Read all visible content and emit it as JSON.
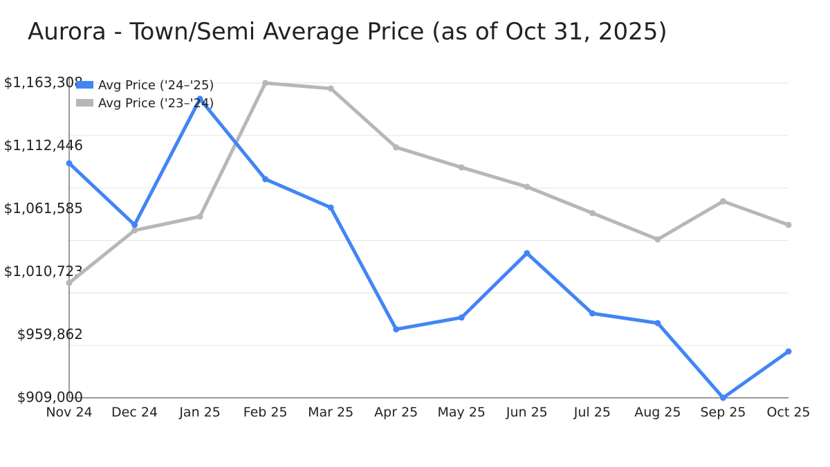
{
  "chart_data": {
    "type": "line",
    "title": "Aurora - Town/Semi Average Price (as of Oct 31, 2025)",
    "xlabel": "",
    "ylabel": "",
    "categories": [
      "Nov 24",
      "Dec 24",
      "Jan 25",
      "Feb 25",
      "Mar 25",
      "Apr 25",
      "May 25",
      "Jun 25",
      "Jul 25",
      "Aug 25",
      "Sep 25",
      "Oct 25"
    ],
    "ylim": [
      909000,
      1163308
    ],
    "yticks": [
      909000,
      959862,
      1010723,
      1061585,
      1112446,
      1163308
    ],
    "ytick_labels": [
      "$909,000",
      "$959,862",
      "$1,010,723",
      "$1,061,585",
      "$1,112,446",
      "$1,163,308"
    ],
    "grid": true,
    "legend_position": "top-left",
    "series": [
      {
        "name": "Avg Price ('24–'25)",
        "color": "#4285f4",
        "values": [
          1098500,
          1048750,
          1150500,
          1085650,
          1062700,
          964350,
          973850,
          1025830,
          977200,
          969370,
          909000,
          946450
        ]
      },
      {
        "name": "Avg Price ('23–'24)",
        "color": "#b7b7b7",
        "values": [
          1001800,
          1044280,
          1055460,
          1163308,
          1158870,
          1111360,
          1095150,
          1079500,
          1058250,
          1037000,
          1067760,
          1048750
        ]
      }
    ]
  }
}
